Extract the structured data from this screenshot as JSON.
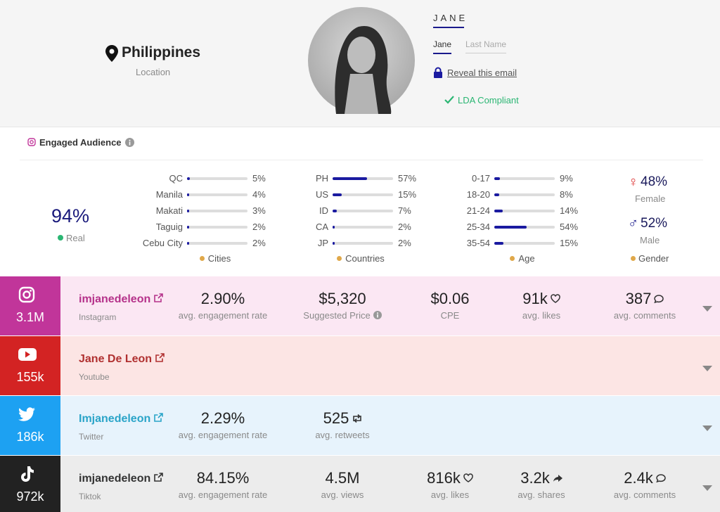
{
  "location": {
    "country": "Philippines",
    "label": "Location"
  },
  "profile": {
    "name": "JANE",
    "tabs": [
      "Jane",
      "Last Name"
    ],
    "reveal_email": "Reveal this email",
    "compliance": "LDA Compliant"
  },
  "audience": {
    "title": "Engaged Audience",
    "real": {
      "value": "94%",
      "label": "Real"
    },
    "columns": [
      {
        "title": "Cities",
        "items": [
          {
            "name": "QC",
            "value": 5,
            "label": "5%"
          },
          {
            "name": "Manila",
            "value": 4,
            "label": "4%"
          },
          {
            "name": "Makati",
            "value": 3,
            "label": "3%"
          },
          {
            "name": "Taguig",
            "value": 2,
            "label": "2%"
          },
          {
            "name": "Cebu City",
            "value": 2,
            "label": "2%"
          }
        ]
      },
      {
        "title": "Countries",
        "items": [
          {
            "name": "PH",
            "value": 57,
            "label": "57%"
          },
          {
            "name": "US",
            "value": 15,
            "label": "15%"
          },
          {
            "name": "ID",
            "value": 7,
            "label": "7%"
          },
          {
            "name": "CA",
            "value": 2,
            "label": "2%"
          },
          {
            "name": "JP",
            "value": 2,
            "label": "2%"
          }
        ]
      },
      {
        "title": "Age",
        "items": [
          {
            "name": "0-17",
            "value": 9,
            "label": "9%"
          },
          {
            "name": "18-20",
            "value": 8,
            "label": "8%"
          },
          {
            "name": "21-24",
            "value": 14,
            "label": "14%"
          },
          {
            "name": "25-34",
            "value": 54,
            "label": "54%"
          },
          {
            "name": "35-54",
            "value": 15,
            "label": "15%"
          }
        ]
      }
    ],
    "gender": {
      "title": "Gender",
      "female": {
        "value": "48%",
        "label": "Female"
      },
      "male": {
        "value": "52%",
        "label": "Male"
      }
    }
  },
  "platforms": [
    {
      "icon": "instagram",
      "color": "#c1359a",
      "background": "#fbe7f3",
      "handle_color": "#b5328a",
      "followers": "3.1M",
      "handle": "imjanedeleon",
      "platform": "Instagram",
      "stats": [
        {
          "value": "2.90%",
          "label": "avg. engagement rate"
        },
        {
          "value": "$5,320",
          "label": "Suggested Price",
          "info": true
        },
        {
          "value": "$0.06",
          "label": "CPE"
        },
        {
          "value": "91k",
          "label": "avg. likes",
          "icon": "heart"
        },
        {
          "value": "387",
          "label": "avg. comments",
          "icon": "comment"
        }
      ]
    },
    {
      "icon": "youtube",
      "color": "#d32323",
      "background": "#fce5e4",
      "handle_color": "#b03030",
      "followers": "155k",
      "handle": "Jane De Leon",
      "platform": "Youtube",
      "stats": []
    },
    {
      "icon": "twitter",
      "color": "#1da1f2",
      "background": "#e7f3fc",
      "handle_color": "#2aa4c8",
      "followers": "186k",
      "handle": "Imjanedeleon",
      "platform": "Twitter",
      "stats": [
        {
          "value": "2.29%",
          "label": "avg. engagement rate"
        },
        {
          "value": "525",
          "label": "avg. retweets",
          "icon": "retweet"
        }
      ]
    },
    {
      "icon": "tiktok",
      "color": "#222222",
      "background": "#ececec",
      "handle_color": "#333333",
      "followers": "972k",
      "handle": "imjanedeleon",
      "platform": "Tiktok",
      "stats": [
        {
          "value": "84.15%",
          "label": "avg. engagement rate"
        },
        {
          "value": "4.5M",
          "label": "avg. views"
        },
        {
          "value": "816k",
          "label": "avg. likes",
          "icon": "heart"
        },
        {
          "value": "3.2k",
          "label": "avg. shares",
          "icon": "share"
        },
        {
          "value": "2.4k",
          "label": "avg. comments",
          "icon": "comment"
        }
      ]
    }
  ]
}
